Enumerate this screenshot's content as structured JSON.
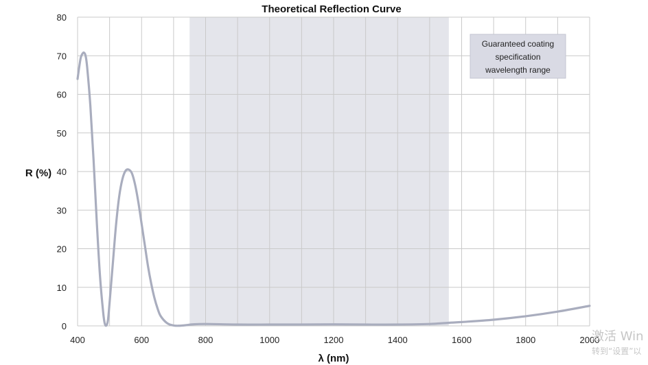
{
  "chart_data": {
    "type": "line",
    "title": "Theoretical Reflection Curve",
    "xlabel": "λ (nm)",
    "ylabel": "R (%)",
    "xlim": [
      400,
      2000
    ],
    "ylim": [
      0,
      80
    ],
    "xticks": [
      400,
      600,
      800,
      1000,
      1200,
      1400,
      1600,
      1800,
      2000
    ],
    "yticks": [
      0,
      10,
      20,
      30,
      40,
      50,
      60,
      70,
      80
    ],
    "grid": true,
    "shaded_region": {
      "x_range": [
        750,
        1560
      ],
      "label": "Guaranteed coating specification wavelength range",
      "label_lines": [
        "Guaranteed coating",
        "specification",
        "wavelength range"
      ],
      "color": "#e4e5eb"
    },
    "series": [
      {
        "color": "#a9adbe",
        "x": [
          400,
          405,
          410,
          415,
          420,
          425,
          430,
          440,
          450,
          460,
          470,
          480,
          485,
          490,
          495,
          500,
          510,
          520,
          530,
          540,
          550,
          560,
          570,
          580,
          590,
          600,
          610,
          620,
          630,
          640,
          650,
          660,
          680,
          700,
          720,
          740,
          760,
          800,
          900,
          1000,
          1100,
          1200,
          1300,
          1400,
          1500,
          1560,
          1600,
          1700,
          1800,
          1900,
          2000
        ],
        "y": [
          64,
          67,
          69.5,
          70.5,
          70.8,
          70,
          67,
          57,
          43,
          27,
          13,
          3.5,
          0.6,
          0.1,
          1.5,
          6,
          16,
          26,
          33.5,
          38,
          40.2,
          40.5,
          39.5,
          36.5,
          32,
          26.5,
          21,
          15.5,
          11,
          7.3,
          4.5,
          2.5,
          0.7,
          0.1,
          0.05,
          0.2,
          0.4,
          0.5,
          0.35,
          0.35,
          0.35,
          0.4,
          0.35,
          0.35,
          0.5,
          0.8,
          1.0,
          1.6,
          2.5,
          3.7,
          5.2
        ]
      }
    ]
  },
  "watermark": {
    "line1": "激活 Win",
    "line2": "转到“设置”以"
  }
}
